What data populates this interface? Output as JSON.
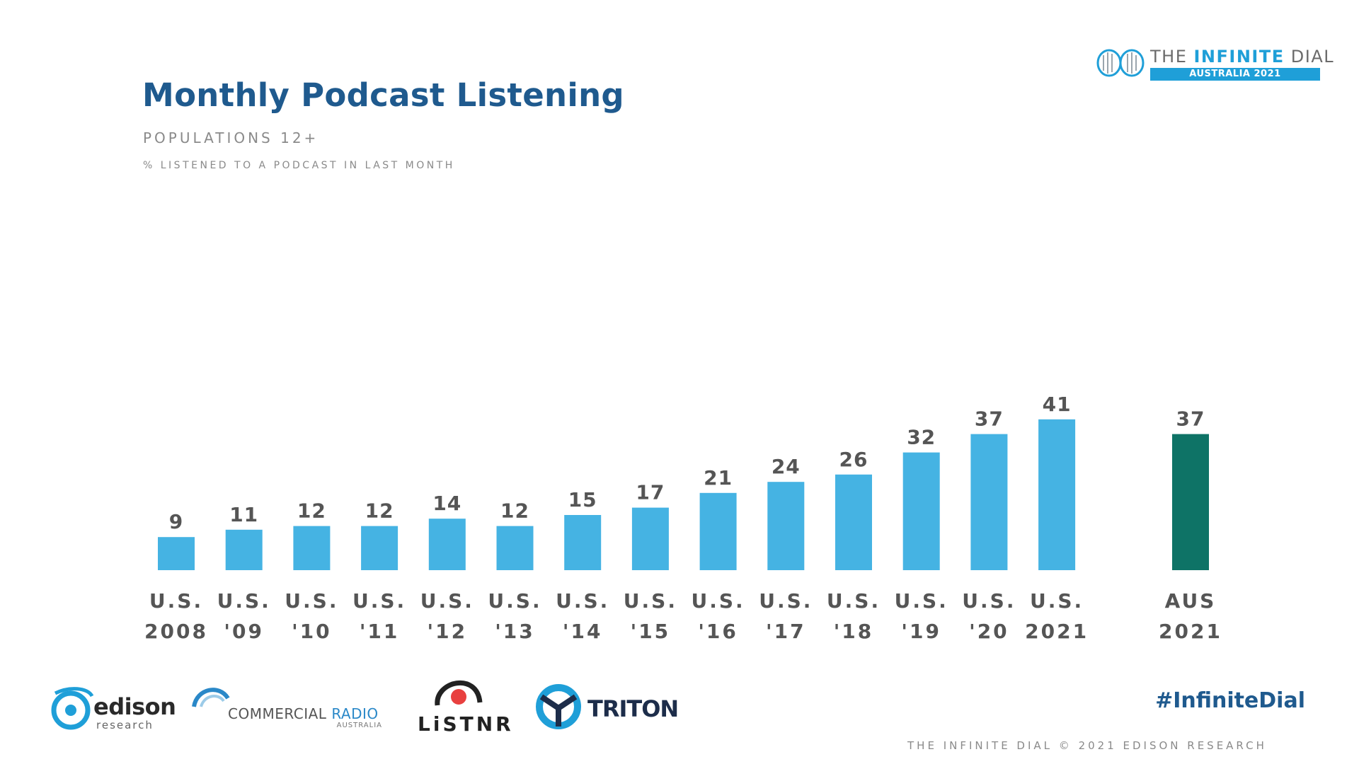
{
  "header": {
    "title": "Monthly Podcast Listening",
    "subtitle": "POPULATIONS 12+",
    "note": "% LISTENED TO A PODCAST IN LAST MONTH"
  },
  "brand": {
    "line1_thin": "THE ",
    "line1_bold": "INFINITE",
    "line1_end": " DIAL",
    "band": "AUSTRALIA 2021"
  },
  "colors": {
    "us_bar": "#45b3e3",
    "aus_bar": "#0e7366",
    "title": "#1f5a8e"
  },
  "chart_data": {
    "type": "bar",
    "title": "Monthly Podcast Listening",
    "ylabel": "% listened to a podcast in last month",
    "ylim": [
      0,
      45
    ],
    "grid": false,
    "categories": [
      [
        "U.S.",
        "2008"
      ],
      [
        "U.S.",
        "'09"
      ],
      [
        "U.S.",
        "'10"
      ],
      [
        "U.S.",
        "'11"
      ],
      [
        "U.S.",
        "'12"
      ],
      [
        "U.S.",
        "'13"
      ],
      [
        "U.S.",
        "'14"
      ],
      [
        "U.S.",
        "'15"
      ],
      [
        "U.S.",
        "'16"
      ],
      [
        "U.S.",
        "'17"
      ],
      [
        "U.S.",
        "'18"
      ],
      [
        "U.S.",
        "'19"
      ],
      [
        "U.S.",
        "'20"
      ],
      [
        "U.S.",
        "2021"
      ],
      [
        "AUS",
        "2021"
      ]
    ],
    "values": [
      9,
      11,
      12,
      12,
      14,
      12,
      15,
      17,
      21,
      24,
      26,
      32,
      37,
      41,
      37
    ],
    "series_group": [
      "us",
      "us",
      "us",
      "us",
      "us",
      "us",
      "us",
      "us",
      "us",
      "us",
      "us",
      "us",
      "us",
      "us",
      "aus"
    ]
  },
  "footer": {
    "logos": {
      "edison": "edison",
      "edison_sub": "research",
      "cra_main_1": "COMMERCIAL ",
      "cra_main_2": "RADIO",
      "cra_sub": "AUSTRALIA",
      "listnr": "LiSTNR",
      "triton": "TRITON"
    },
    "hashtag": "#InfiniteDial",
    "copyright": "THE INFINITE DIAL  © 2021 EDISON RESEARCH"
  }
}
